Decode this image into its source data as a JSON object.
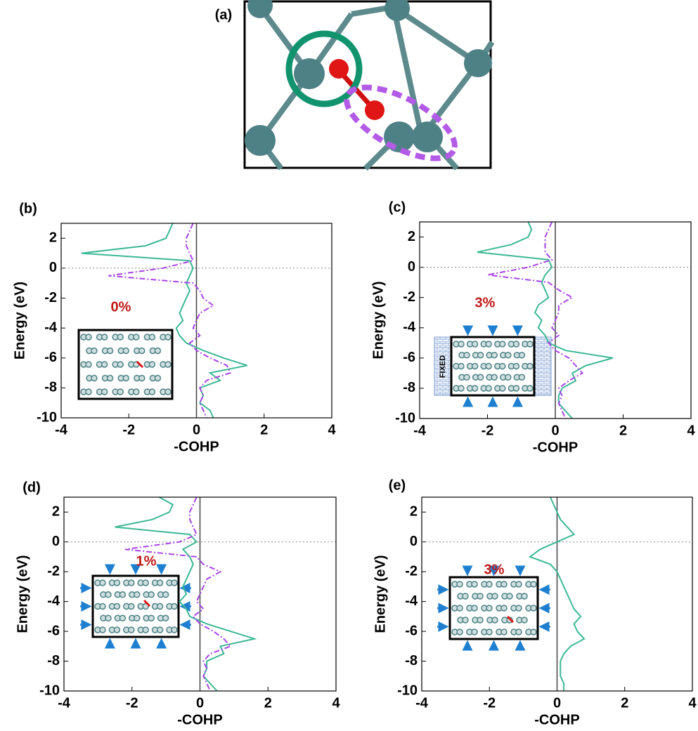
{
  "panel_a": {
    "label": "(a)"
  },
  "chart_data": [
    {
      "type": "line",
      "label": "(b)",
      "xlabel": "-COHP",
      "ylabel": "Energy (eV)",
      "annotations": [
        "0%"
      ],
      "xlim": [
        -4,
        4
      ],
      "ylim": [
        -10,
        3
      ],
      "xticks": [
        -4,
        -2,
        0,
        2,
        4
      ],
      "yticks": [
        -10,
        -8,
        -6,
        -4,
        -2,
        0,
        2
      ],
      "energies": [
        3,
        2.5,
        2,
        1.5,
        1,
        0.5,
        0,
        -0.5,
        -1,
        -1.5,
        -2,
        -2.5,
        -3,
        -3.5,
        -4,
        -4.5,
        -5,
        -5.5,
        -6,
        -6.5,
        -7,
        -7.5,
        -8,
        -8.5,
        -9,
        -9.5,
        -10
      ],
      "series": [
        {
          "color": "#3cb894",
          "style": "solid",
          "values": [
            -0.7,
            -0.8,
            -0.9,
            -1.5,
            -3.4,
            -0.2,
            -0.1,
            -0.2,
            -0.3,
            -0.2,
            -0.3,
            -0.4,
            -0.5,
            -0.4,
            -0.6,
            -0.5,
            -0.3,
            0.2,
            0.8,
            1.5,
            0.4,
            0.7,
            0.1,
            0.2,
            0.1,
            0.4,
            0.5
          ]
        },
        {
          "color": "#a845e8",
          "style": "dashdot",
          "values": [
            -0.1,
            -0.2,
            -0.3,
            -0.3,
            -0.2,
            -0.1,
            -1.0,
            -2.6,
            -0.1,
            0.1,
            0.2,
            0.5,
            0.1,
            0,
            -0.1,
            0.1,
            -0.2,
            0,
            0.4,
            0.9,
            1.0,
            0.3,
            0.1,
            0.2,
            0.1,
            0.2,
            0.3
          ]
        }
      ]
    },
    {
      "type": "line",
      "label": "(c)",
      "xlabel": "-COHP",
      "ylabel": "Energy (eV)",
      "annotations": [
        "3%",
        "FIXED"
      ],
      "xlim": [
        -4,
        4
      ],
      "ylim": [
        -10,
        3
      ],
      "xticks": [
        -4,
        -2,
        0,
        2,
        4
      ],
      "yticks": [
        -10,
        -8,
        -6,
        -4,
        -2,
        0,
        2
      ],
      "energies": [
        3,
        2.5,
        2,
        1.5,
        1,
        0.5,
        0,
        -0.5,
        -1,
        -1.5,
        -2,
        -2.5,
        -3,
        -3.5,
        -4,
        -4.5,
        -5,
        -5.5,
        -6,
        -6.5,
        -7,
        -7.5,
        -8,
        -8.5,
        -9,
        -9.5,
        -10
      ],
      "series": [
        {
          "color": "#3cb894",
          "style": "solid",
          "values": [
            -0.8,
            -0.7,
            -0.8,
            -1.3,
            -2.3,
            -0.2,
            -0.1,
            -0.3,
            -0.4,
            -0.3,
            -0.2,
            -0.5,
            -0.6,
            -0.4,
            -0.5,
            -0.3,
            -0.2,
            0.3,
            1.7,
            0.9,
            0.5,
            0.6,
            0.2,
            0.1,
            0.1,
            0.3,
            0.5
          ]
        },
        {
          "color": "#a845e8",
          "style": "dashdot",
          "values": [
            -0.1,
            -0.2,
            -0.3,
            -0.3,
            -0.3,
            -0.1,
            -0.8,
            -2.0,
            -0.2,
            0.1,
            0.5,
            0.1,
            0.1,
            0,
            -0.1,
            0.1,
            -0.2,
            0,
            0.4,
            0.6,
            0.8,
            0.4,
            0.1,
            0.2,
            0.1,
            0.2,
            0.3
          ]
        }
      ]
    },
    {
      "type": "line",
      "label": "(d)",
      "xlabel": "-COHP",
      "ylabel": "Energy (eV)",
      "annotations": [
        "1%"
      ],
      "xlim": [
        -4,
        4
      ],
      "ylim": [
        -10,
        3
      ],
      "xticks": [
        -4,
        -2,
        0,
        2,
        4
      ],
      "yticks": [
        -10,
        -8,
        -6,
        -4,
        -2,
        0,
        2
      ],
      "energies": [
        3,
        2.5,
        2,
        1.5,
        1,
        0.5,
        0,
        -0.5,
        -1,
        -1.5,
        -2,
        -2.5,
        -3,
        -3.5,
        -4,
        -4.5,
        -5,
        -5.5,
        -6,
        -6.5,
        -7,
        -7.5,
        -8,
        -8.5,
        -9,
        -9.5,
        -10
      ],
      "series": [
        {
          "color": "#3cb894",
          "style": "solid",
          "values": [
            -1.2,
            -0.8,
            -0.9,
            -1.4,
            -2.5,
            -0.3,
            -0.1,
            -0.5,
            -0.3,
            -0.2,
            -0.3,
            -0.4,
            -0.5,
            -0.4,
            -0.6,
            -0.4,
            -0.3,
            0.2,
            0.9,
            1.6,
            0.6,
            0.7,
            0.2,
            0.2,
            0.1,
            0.3,
            0.5
          ]
        },
        {
          "color": "#a845e8",
          "style": "dashdot",
          "values": [
            -0.1,
            -0.2,
            -0.3,
            -0.3,
            -0.2,
            -0.1,
            -0.6,
            -2.2,
            -0.1,
            0.1,
            0.6,
            0.2,
            0.1,
            0,
            -0.1,
            0.1,
            -0.2,
            0,
            0.4,
            0.7,
            0.9,
            0.3,
            0.1,
            0.2,
            0.1,
            0.2,
            0.3
          ]
        }
      ]
    },
    {
      "type": "line",
      "label": "(e)",
      "xlabel": "-COHP",
      "ylabel": "Energy (eV)",
      "annotations": [
        "3%"
      ],
      "xlim": [
        -4,
        4
      ],
      "ylim": [
        -10,
        3
      ],
      "xticks": [
        -4,
        -2,
        0,
        2,
        4
      ],
      "yticks": [
        -10,
        -8,
        -6,
        -4,
        -2,
        0,
        2
      ],
      "energies": [
        3,
        2.5,
        2,
        1.5,
        1,
        0.5,
        0,
        -0.5,
        -1,
        -1.5,
        -2,
        -2.5,
        -3,
        -3.5,
        -4,
        -4.5,
        -5,
        -5.5,
        -6,
        -6.5,
        -7,
        -7.5,
        -8,
        -8.5,
        -9,
        -9.5,
        -10
      ],
      "series": [
        {
          "color": "#3cb894",
          "style": "solid",
          "values": [
            -0.2,
            -0.1,
            0,
            0.1,
            0.3,
            0.5,
            0,
            -0.5,
            -0.8,
            -0.2,
            0,
            0.1,
            0.2,
            0.3,
            0.4,
            0.5,
            0.7,
            0.5,
            0.6,
            0.8,
            0.4,
            0.2,
            0.1,
            0.1,
            0.1,
            0.2,
            0.2
          ]
        }
      ]
    }
  ]
}
